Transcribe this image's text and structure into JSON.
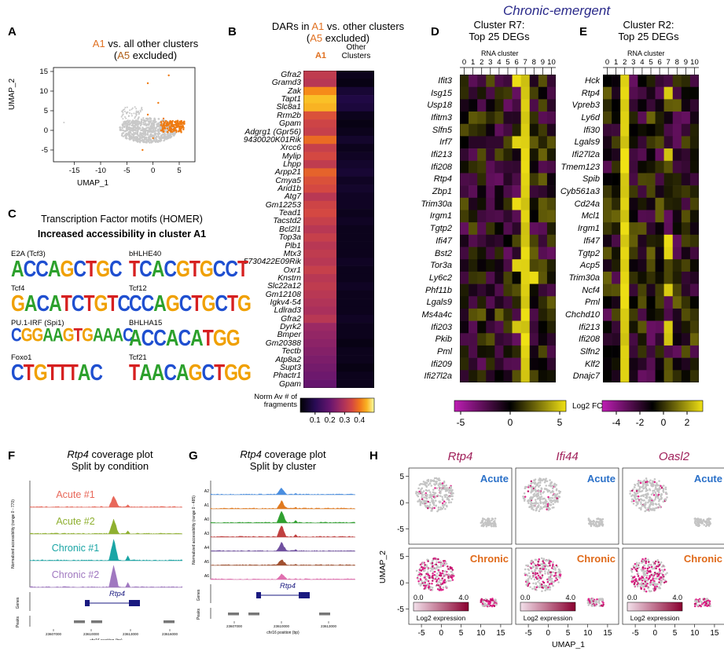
{
  "panelA": {
    "label": "A",
    "title_1": "A1",
    "title_2": " vs. all other clusters",
    "subtitle_1": "(",
    "subtitle_2": "A5",
    "subtitle_3": " excluded)",
    "xlabel": "UMAP_1",
    "ylabel": "UMAP_2",
    "xticks": [
      "-15",
      "-10",
      "-5",
      "0",
      "5"
    ],
    "yticks": [
      "15",
      "10",
      "5",
      "0",
      "-5"
    ]
  },
  "panelB": {
    "label": "B",
    "title_1": "DARs in ",
    "title_2": "A1",
    "title_3": " vs. other clusters",
    "subtitle_1": "(",
    "subtitle_2": "A5",
    "subtitle_3": " excluded)",
    "col1": "A1",
    "col2": "Other Clusters",
    "genes": [
      "Gfra2",
      "Gramd3",
      "Zak",
      "Tapt1",
      "Slc8a1",
      "Rrm2b",
      "Gpam",
      "Adgrg1 (Gpr56)",
      "9430020K01Rik",
      "Xrcc6",
      "Mylip",
      "Lhpp",
      "Arpp21",
      "Cmya5",
      "Arid1b",
      "Atg7",
      "Gm12253",
      "Tead1",
      "Tacstd2",
      "Bcl2l1",
      "Top3a",
      "Plb1",
      "Mtx3",
      "5730422E09Rik",
      "Oxr1",
      "Knstrn",
      "Slc22a12",
      "Gm12108",
      "Igkv4-54",
      "Ldlrad3",
      "Gfra2",
      "Dyrk2",
      "Bmper",
      "Gm20388",
      "Tectb",
      "Atp8a2",
      "Supt3",
      "Phactr1",
      "Gpam"
    ],
    "a1_values": [
      0.32,
      0.31,
      0.42,
      0.46,
      0.45,
      0.36,
      0.34,
      0.33,
      0.39,
      0.33,
      0.35,
      0.32,
      0.38,
      0.36,
      0.35,
      0.31,
      0.34,
      0.35,
      0.33,
      0.31,
      0.33,
      0.31,
      0.32,
      0.31,
      0.33,
      0.31,
      0.32,
      0.31,
      0.3,
      0.29,
      0.31,
      0.27,
      0.26,
      0.25,
      0.24,
      0.23,
      0.22,
      0.21,
      0.2
    ],
    "other_values": [
      0.03,
      0.02,
      0.06,
      0.08,
      0.07,
      0.03,
      0.02,
      0.03,
      0.05,
      0.03,
      0.04,
      0.05,
      0.06,
      0.04,
      0.05,
      0.04,
      0.04,
      0.03,
      0.04,
      0.03,
      0.03,
      0.03,
      0.03,
      0.04,
      0.03,
      0.03,
      0.04,
      0.03,
      0.03,
      0.03,
      0.04,
      0.03,
      0.03,
      0.02,
      0.03,
      0.03,
      0.02,
      0.03,
      0.03
    ],
    "legend_title": "Norm Av # of fragments",
    "legend_ticks": [
      "0.1",
      "0.2",
      "0.3",
      "0.4"
    ]
  },
  "panelC": {
    "label": "C",
    "title": "Transcription Factor motifs (HOMER)",
    "subtitle": "Increased accessibility in cluster A1",
    "motifs": [
      {
        "name": "E2A (Tcf3)",
        "seq": "ACCAGCTGC"
      },
      {
        "name": "bHLHE40",
        "seq": "TCACGTGCCT"
      },
      {
        "name": "Tcf4",
        "seq": "GACATCTGTC"
      },
      {
        "name": "Tcf12",
        "seq": "CCAGCTGCTG"
      },
      {
        "name": "PU.1-IRF (Spi1)",
        "seq": "CGGAAGTGAAAC"
      },
      {
        "name": "BHLHA15",
        "seq": "ACCACATGG"
      },
      {
        "name": "Foxo1",
        "seq": "CTGTTTAC"
      },
      {
        "name": "Tcf21",
        "seq": "TAACAGCTGG"
      }
    ]
  },
  "chronic_emergent": "Chronic-emergent",
  "panelD": {
    "label": "D",
    "title_1": "Cluster R7:",
    "title_2": "Top 25 DEGs",
    "xlabel": "RNA cluster",
    "clusters": [
      "0",
      "1",
      "2",
      "3",
      "4",
      "5",
      "6",
      "7",
      "8",
      "9",
      "10"
    ],
    "genes": [
      "Ifit3",
      "Isg15",
      "Usp18",
      "Ifitm3",
      "Slfn5",
      "Irf7",
      "Ifi213",
      "Ifi208",
      "Rtp4",
      "Zbp1",
      "Trim30a",
      "Irgm1",
      "Tgtp2",
      "Ifi47",
      "Bst2",
      "Tor3a",
      "Ly6c2",
      "Phf11b",
      "Lgals9",
      "Ms4a4c",
      "Ifi203",
      "Pkib",
      "Pml",
      "Ifi209",
      "Ifi27l2a"
    ]
  },
  "panelE": {
    "label": "E",
    "title_1": "Cluster R2:",
    "title_2": "Top 25 DEGs",
    "xlabel": "RNA cluster",
    "clusters": [
      "0",
      "1",
      "2",
      "3",
      "4",
      "5",
      "6",
      "7",
      "8",
      "9",
      "10"
    ],
    "genes": [
      "Hck",
      "Rtp4",
      "Vpreb3",
      "Ly6d",
      "Ifi30",
      "Lgals9",
      "Ifi27l2a",
      "Tmem123",
      "Spib",
      "Cyb561a3",
      "Cd24a",
      "Mcl1",
      "Irgm1",
      "Ifi47",
      "Tgtp2",
      "Acp5",
      "Trim30a",
      "Ncf4",
      "Pml",
      "Chchd10",
      "Ifi213",
      "Ifi208",
      "Slfn2",
      "Klf2",
      "Dnajc7"
    ]
  },
  "de_legend": {
    "label": "Log2 FC",
    "d_ticks": [
      "-5",
      "0",
      "5"
    ],
    "e_ticks": [
      "-4",
      "-2",
      "0",
      "2"
    ]
  },
  "panelF": {
    "label": "F",
    "title_gene": "Rtp4",
    "title_rest": " coverage plot",
    "subtitle": "Split by condition",
    "tracks": [
      "Acute #1",
      "Acute #2",
      "Chronic #1",
      "Chronic #2"
    ],
    "track_colors": [
      "#e8685a",
      "#8fb030",
      "#1aa5a5",
      "#a078c0"
    ],
    "ylabel": "Normalized accessibility (range 0 - 770)",
    "genes_label": "Genes",
    "peaks_label": "Peaks",
    "gene": "Rtp4",
    "xticks": [
      "23607000",
      "23610000",
      "23613000",
      "23616000"
    ],
    "xlabel": "chr16 position (bp)"
  },
  "panelG": {
    "label": "G",
    "title_gene": "Rtp4",
    "title_rest": " coverage plot",
    "subtitle": "Split by cluster",
    "tracks": [
      "A2",
      "A1",
      "A0",
      "A3",
      "A4",
      "A5",
      "A6"
    ],
    "track_colors": [
      "#4a8ee0",
      "#e07a20",
      "#30a030",
      "#c04040",
      "#7050a0",
      "#a05030",
      "#e070b0"
    ],
    "ylabel": "Normalized accessibility (range 0 - 485)",
    "genes_label": "Genes",
    "peaks_label": "Peaks",
    "gene": "Rtp4",
    "xticks": [
      "23607000",
      "23610000",
      "23613000"
    ],
    "xlabel": "chr16 position (bp)"
  },
  "panelH": {
    "label": "H",
    "genes": [
      "Rtp4",
      "Ifi44",
      "Oasl2"
    ],
    "top": "Acute",
    "bottom": "Chronic",
    "xlabel": "UMAP_1",
    "ylabel": "UMAP_2",
    "yticks_top": [
      "5",
      "0",
      "-5"
    ],
    "yticks_bot": [
      "5",
      "0",
      "-5"
    ],
    "xticks": [
      "-5",
      "0",
      "5",
      "10",
      "15"
    ],
    "legend_min": "0.0",
    "legend_max": "4.0",
    "legend_label": "Log2 expression"
  },
  "colors": {
    "orange": "#e07020",
    "acute_blue": "#2a70c8",
    "chronic_orange": "#e06a1a",
    "gene_magenta": "#a0205a"
  }
}
